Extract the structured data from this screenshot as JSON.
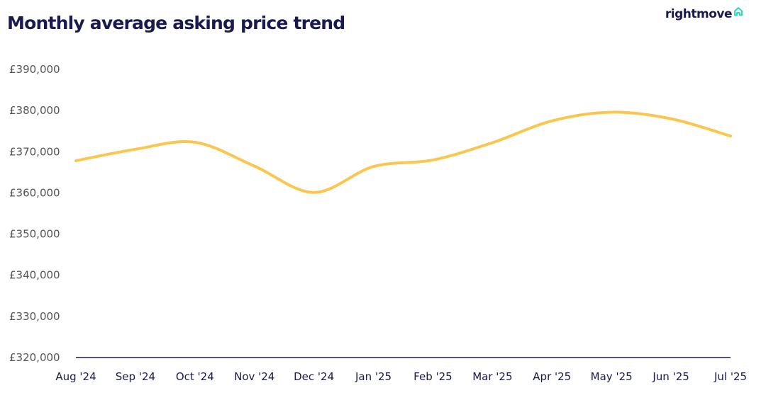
{
  "header": {
    "title": "Monthly average asking price trend",
    "brand": "rightmove"
  },
  "colors": {
    "line": "#f9c74f",
    "title": "#1a1a4e",
    "axis": "#1a1a4e",
    "tick_text": "#555555",
    "brand_icon": "#00deb6"
  },
  "icons": {
    "brand_icon": "house-outline-icon"
  },
  "chart_data": {
    "type": "line",
    "title": "Monthly average asking price trend",
    "xlabel": "",
    "ylabel": "",
    "categories": [
      "Aug '24",
      "Sep '24",
      "Oct '24",
      "Nov '24",
      "Dec '24",
      "Jan '25",
      "Feb '25",
      "Mar '25",
      "Apr '25",
      "May '25",
      "Jun '25",
      "Jul '25"
    ],
    "y_tick_labels": [
      "£320,000",
      "£330,000",
      "£340,000",
      "£350,000",
      "£360,000",
      "£370,000",
      "£380,000",
      "£390,000"
    ],
    "y_ticks": [
      320000,
      330000,
      340000,
      350000,
      360000,
      370000,
      380000,
      390000
    ],
    "ylim": [
      320000,
      390000
    ],
    "grid": false,
    "legend": "none",
    "series": [
      {
        "values": [
          367800,
          370600,
          372300,
          366500,
          360100,
          366400,
          368000,
          372200,
          377500,
          379600,
          378000,
          373800
        ]
      }
    ]
  }
}
